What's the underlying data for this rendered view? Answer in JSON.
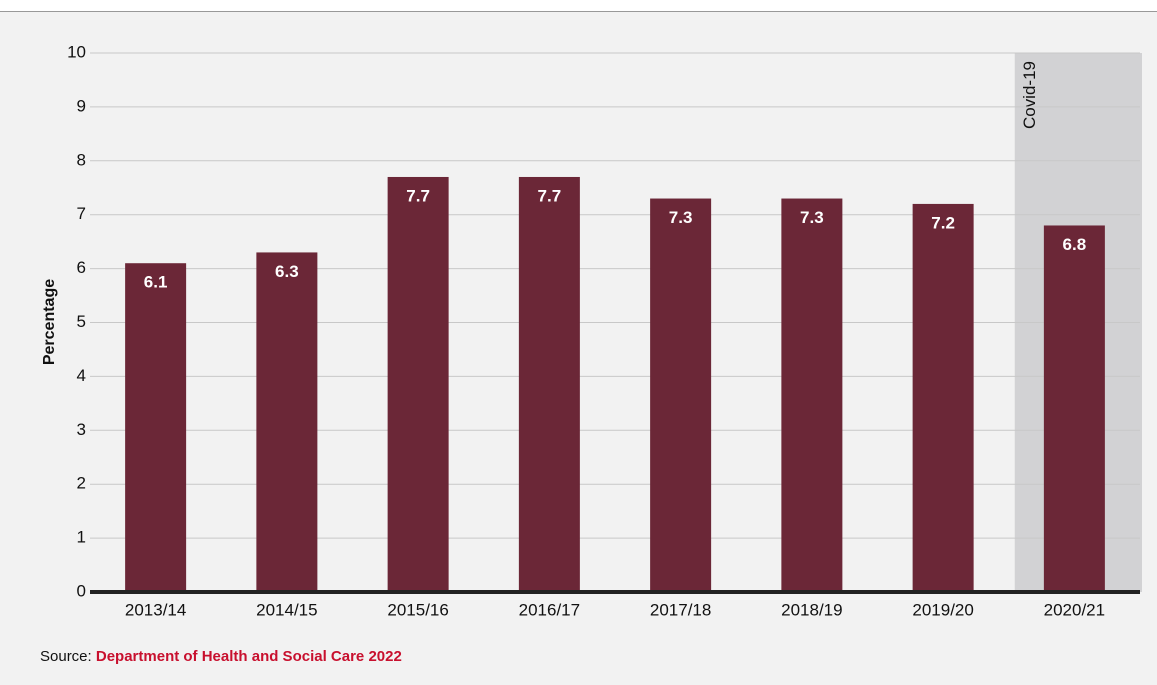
{
  "chart_data": {
    "type": "bar",
    "y_label": "Percentage",
    "categories": [
      "2013/14",
      "2014/15",
      "2015/16",
      "2016/17",
      "2017/18",
      "2018/19",
      "2019/20",
      "2020/21"
    ],
    "values": [
      6.1,
      6.3,
      7.7,
      7.7,
      7.3,
      7.3,
      7.2,
      6.8
    ],
    "color": "#6b2737",
    "ylim": [
      0,
      10
    ],
    "yticks": [
      0,
      1,
      2,
      3,
      4,
      5,
      6,
      7,
      8,
      9,
      10
    ],
    "grid": true,
    "annotations": [
      {
        "text": "Covid-19",
        "category": "2020/21",
        "color": "#d2d2d4"
      }
    ],
    "source_label": "Source:",
    "source": "Department of Health and Social Care 2022"
  }
}
